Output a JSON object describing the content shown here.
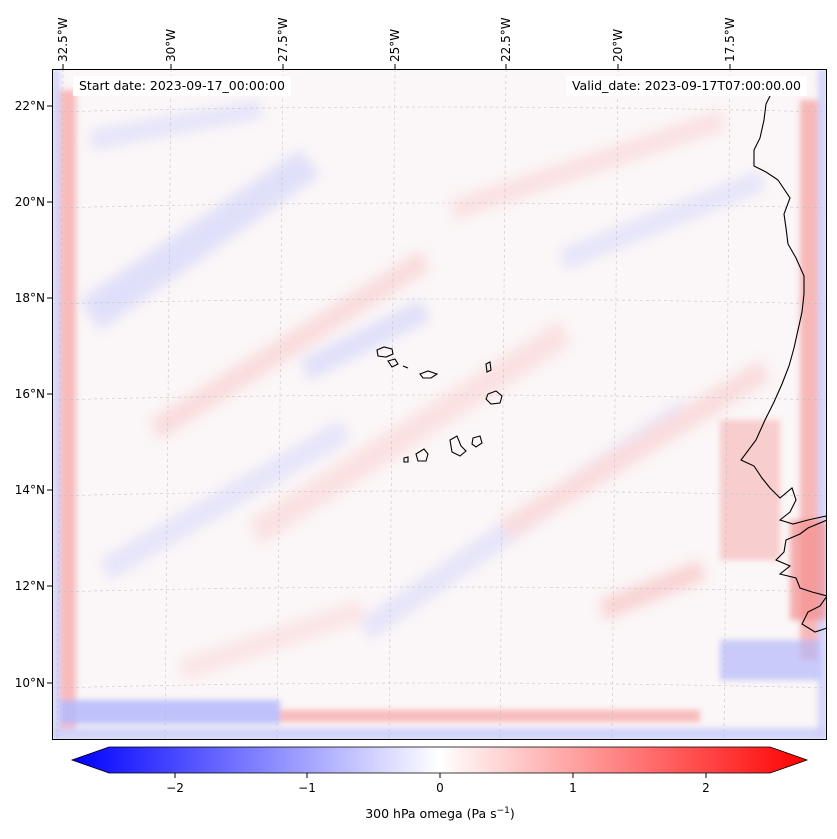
{
  "map": {
    "start_date_text": "Start date: 2023-09-17_00:00:00",
    "valid_date_text": "Valid_date: 2023-09-17T07:00:00.00",
    "lon_labels": [
      "32.5°W",
      "30°W",
      "27.5°W",
      "25°W",
      "22.5°W",
      "20°W",
      "17.5°W"
    ],
    "lat_labels": [
      "22°N",
      "20°N",
      "18°N",
      "16°N",
      "14°N",
      "12°N",
      "10°N"
    ],
    "colorbar": {
      "ticks": [
        "−2",
        "−1",
        "0",
        "1",
        "2"
      ],
      "label_main": "300 hPa omega (Pa s",
      "label_exp": "−1",
      "label_end": ")",
      "range": [
        -2.7,
        2.7
      ],
      "colors": {
        "negative": "#0000ff",
        "zero": "#ffffff",
        "positive": "#ff0000"
      }
    },
    "coastline_color": "#000000"
  }
}
